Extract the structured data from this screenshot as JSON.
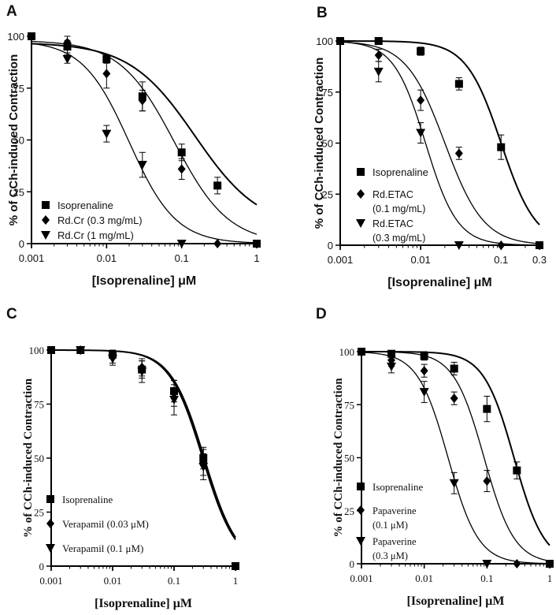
{
  "chart_data": [
    {
      "type": "scatter",
      "panel_label": "A",
      "font": "sans",
      "ylabel": "% of CCh-induced Contraction",
      "xlabel": "[Isoprenaline] μM",
      "xscale": "log",
      "xlim": [
        0.001,
        1
      ],
      "ylim": [
        0,
        100
      ],
      "x_ticks": [
        0.001,
        0.01,
        0.1,
        1
      ],
      "x_tick_labels": [
        "0.001",
        "0.01",
        "0.1",
        "1"
      ],
      "y_ticks": [
        0,
        25,
        50,
        75,
        100
      ],
      "y_tick_labels": [
        "0",
        "25",
        "50",
        "75",
        "100"
      ],
      "legend_position": "bottom-left",
      "series": [
        {
          "name": "Isoprenaline",
          "marker": "square",
          "fit": {
            "top": 97,
            "bottom": 7,
            "ec50": 0.15,
            "slope": 1.0
          },
          "points": [
            {
              "x": 0.001,
              "y": 100,
              "err": 1
            },
            {
              "x": 0.003,
              "y": 95,
              "err": 3
            },
            {
              "x": 0.01,
              "y": 89,
              "err": 2
            },
            {
              "x": 0.03,
              "y": 71,
              "err": 7
            },
            {
              "x": 0.1,
              "y": 44,
              "err": 4
            },
            {
              "x": 0.3,
              "y": 28,
              "err": 4
            },
            {
              "x": 1,
              "y": 0,
              "err": 1
            }
          ]
        },
        {
          "name": "Rd.Cr (0.3 mg/mL)",
          "marker": "diamond",
          "fit": {
            "top": 98,
            "bottom": 0,
            "ec50": 0.08,
            "slope": 1.2
          },
          "points": [
            {
              "x": 0.003,
              "y": 97,
              "err": 3
            },
            {
              "x": 0.01,
              "y": 82,
              "err": 7
            },
            {
              "x": 0.03,
              "y": 69,
              "err": 5
            },
            {
              "x": 0.1,
              "y": 36,
              "err": 5
            },
            {
              "x": 0.3,
              "y": 0,
              "err": 1
            }
          ]
        },
        {
          "name": "Rd.Cr (1 mg/mL)",
          "marker": "triangle-down",
          "fit": {
            "top": 98,
            "bottom": 0,
            "ec50": 0.02,
            "slope": 1.4
          },
          "points": [
            {
              "x": 0.003,
              "y": 89,
              "err": 2
            },
            {
              "x": 0.01,
              "y": 53,
              "err": 4
            },
            {
              "x": 0.03,
              "y": 38,
              "err": 6
            },
            {
              "x": 0.1,
              "y": 0,
              "err": 1
            }
          ]
        }
      ]
    },
    {
      "type": "scatter",
      "panel_label": "B",
      "font": "sans",
      "ylabel": "% of CCh-induced Contraction",
      "xlabel": "[Isoprenaline] μM",
      "xscale": "log",
      "xlim": [
        0.001,
        0.3
      ],
      "ylim": [
        0,
        100
      ],
      "x_ticks": [
        0.001,
        0.01,
        0.1,
        0.3
      ],
      "x_tick_labels": [
        "0.001",
        "0.01",
        "0.1",
        "0.3"
      ],
      "y_ticks": [
        0,
        25,
        50,
        75,
        100
      ],
      "y_tick_labels": [
        "0",
        "25",
        "50",
        "75",
        "100"
      ],
      "legend_position": "bottom-left",
      "series": [
        {
          "name": "Isoprenaline",
          "marker": "square",
          "fit": {
            "top": 100,
            "bottom": 0,
            "ec50": 0.1,
            "slope": 2.0
          },
          "points": [
            {
              "x": 0.001,
              "y": 100,
              "err": 1
            },
            {
              "x": 0.003,
              "y": 100,
              "err": 1
            },
            {
              "x": 0.01,
              "y": 95,
              "err": 2
            },
            {
              "x": 0.03,
              "y": 79,
              "err": 3
            },
            {
              "x": 0.1,
              "y": 48,
              "err": 6
            },
            {
              "x": 0.3,
              "y": 0,
              "err": 1
            }
          ]
        },
        {
          "name": [
            "Rd.ETAC",
            "(0.1 mg/mL)"
          ],
          "marker": "diamond",
          "fit": {
            "top": 100,
            "bottom": 0,
            "ec50": 0.02,
            "slope": 1.8
          },
          "points": [
            {
              "x": 0.003,
              "y": 93,
              "err": 3
            },
            {
              "x": 0.01,
              "y": 71,
              "err": 5
            },
            {
              "x": 0.03,
              "y": 45,
              "err": 3
            },
            {
              "x": 0.1,
              "y": 0,
              "err": 1
            }
          ]
        },
        {
          "name": [
            "Rd.ETAC",
            "(0.3 mg/mL)"
          ],
          "marker": "triangle-down",
          "fit": {
            "top": 100,
            "bottom": 0,
            "ec50": 0.0115,
            "slope": 2.2
          },
          "points": [
            {
              "x": 0.003,
              "y": 85,
              "err": 5
            },
            {
              "x": 0.01,
              "y": 55,
              "err": 5
            },
            {
              "x": 0.03,
              "y": 0,
              "err": 1
            }
          ]
        }
      ]
    },
    {
      "type": "scatter",
      "panel_label": "C",
      "font": "serif",
      "ylabel": "% of CCh-induced Contraction",
      "xlabel": "[Isoprenaline] μM",
      "xscale": "log",
      "xlim": [
        0.001,
        1
      ],
      "ylim": [
        0,
        100
      ],
      "x_ticks": [
        0.001,
        0.01,
        0.1,
        1
      ],
      "x_tick_labels": [
        "0.001",
        "0.01",
        "0.1",
        "1"
      ],
      "y_ticks": [
        0,
        25,
        50,
        75,
        100
      ],
      "y_tick_labels": [
        "0",
        "25",
        "50",
        "75",
        "100"
      ],
      "legend_position": "bottom-left",
      "series": [
        {
          "name": "Isoprenaline",
          "marker": "square",
          "fit": {
            "top": 100,
            "bottom": 0,
            "ec50": 0.31,
            "slope": 1.6
          },
          "points": [
            {
              "x": 0.001,
              "y": 100,
              "err": 1
            },
            {
              "x": 0.003,
              "y": 100,
              "err": 1
            },
            {
              "x": 0.01,
              "y": 98,
              "err": 2
            },
            {
              "x": 0.03,
              "y": 91,
              "err": 4
            },
            {
              "x": 0.1,
              "y": 81,
              "err": 5
            },
            {
              "x": 0.3,
              "y": 50,
              "err": 5
            },
            {
              "x": 1,
              "y": 0,
              "err": 1
            }
          ]
        },
        {
          "name": "Verapamil (0.03 μM)",
          "marker": "diamond",
          "fit": {
            "top": 100,
            "bottom": 0,
            "ec50": 0.3,
            "slope": 1.6
          },
          "points": [
            {
              "x": 0.003,
              "y": 100,
              "err": 1
            },
            {
              "x": 0.01,
              "y": 97,
              "err": 3
            },
            {
              "x": 0.03,
              "y": 92,
              "err": 4
            },
            {
              "x": 0.1,
              "y": 80,
              "err": 6
            },
            {
              "x": 0.3,
              "y": 48,
              "err": 6
            }
          ]
        },
        {
          "name": "Verapamil (0.1 μM)",
          "marker": "triangle-down",
          "fit": {
            "top": 100,
            "bottom": 0,
            "ec50": 0.29,
            "slope": 1.6
          },
          "points": [
            {
              "x": 0.003,
              "y": 100,
              "err": 1
            },
            {
              "x": 0.01,
              "y": 96,
              "err": 3
            },
            {
              "x": 0.03,
              "y": 90,
              "err": 5
            },
            {
              "x": 0.1,
              "y": 77,
              "err": 7
            },
            {
              "x": 0.3,
              "y": 46,
              "err": 6
            }
          ]
        }
      ]
    },
    {
      "type": "scatter",
      "panel_label": "D",
      "font": "serif",
      "ylabel": "% of CCh-induced Contraction",
      "xlabel": "[Isoprenaline] μM",
      "xscale": "log",
      "xlim": [
        0.001,
        1
      ],
      "ylim": [
        0,
        100
      ],
      "x_ticks": [
        0.001,
        0.01,
        0.1,
        1
      ],
      "x_tick_labels": [
        "0.001",
        "0.01",
        "0.1",
        "1"
      ],
      "y_ticks": [
        0,
        25,
        50,
        75,
        100
      ],
      "y_tick_labels": [
        "0",
        "25",
        "50",
        "75",
        "100"
      ],
      "legend_position": "bottom-left",
      "series": [
        {
          "name": "Isoprenaline",
          "marker": "square",
          "fit": {
            "top": 100,
            "bottom": 0,
            "ec50": 0.27,
            "slope": 1.8
          },
          "points": [
            {
              "x": 0.001,
              "y": 100,
              "err": 1
            },
            {
              "x": 0.003,
              "y": 99,
              "err": 1
            },
            {
              "x": 0.01,
              "y": 98,
              "err": 2
            },
            {
              "x": 0.03,
              "y": 92,
              "err": 3
            },
            {
              "x": 0.1,
              "y": 73,
              "err": 6
            },
            {
              "x": 0.3,
              "y": 44,
              "err": 4
            },
            {
              "x": 1,
              "y": 0,
              "err": 1
            }
          ]
        },
        {
          "name": [
            "Papaverine",
            "(0.1 μM)"
          ],
          "marker": "diamond",
          "fit": {
            "top": 100,
            "bottom": 0,
            "ec50": 0.09,
            "slope": 1.8
          },
          "points": [
            {
              "x": 0.003,
              "y": 96,
              "err": 3
            },
            {
              "x": 0.01,
              "y": 91,
              "err": 3
            },
            {
              "x": 0.03,
              "y": 78,
              "err": 3
            },
            {
              "x": 0.1,
              "y": 39,
              "err": 5
            },
            {
              "x": 0.3,
              "y": 0,
              "err": 1
            }
          ]
        },
        {
          "name": [
            "Papaverine",
            "(0.3 μM)"
          ],
          "marker": "triangle-down",
          "fit": {
            "top": 100,
            "bottom": 0,
            "ec50": 0.024,
            "slope": 1.8
          },
          "points": [
            {
              "x": 0.003,
              "y": 93,
              "err": 3
            },
            {
              "x": 0.01,
              "y": 81,
              "err": 5
            },
            {
              "x": 0.03,
              "y": 38,
              "err": 5
            },
            {
              "x": 0.1,
              "y": 0,
              "err": 1
            }
          ]
        }
      ]
    }
  ]
}
